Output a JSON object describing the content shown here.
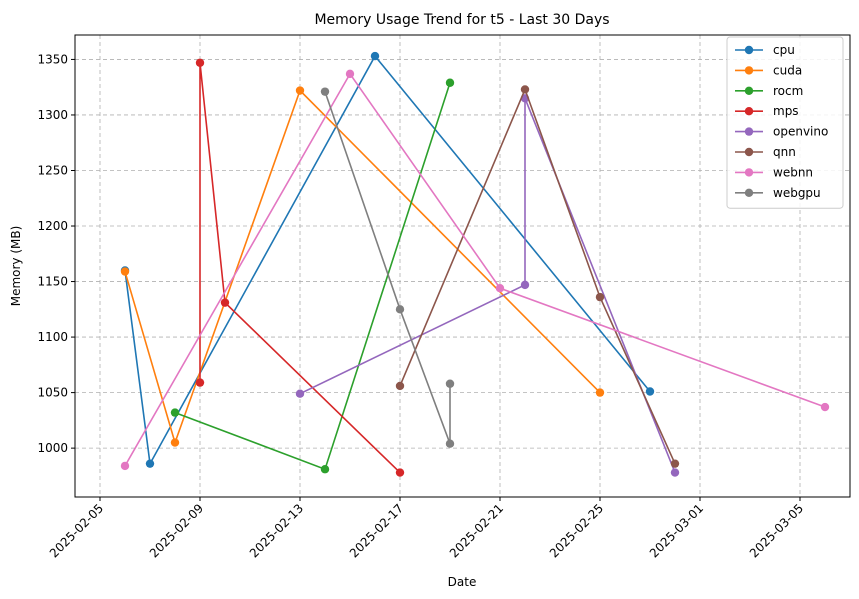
{
  "chart_data": {
    "type": "line",
    "title": "Memory Usage Trend for t5 - Last 30 Days",
    "xlabel": "Date",
    "ylabel": "Memory (MB)",
    "x_type": "date",
    "xlim": [
      "2025-02-04",
      "2025-03-07"
    ],
    "ylim": [
      956,
      1372
    ],
    "x_ticks": [
      "2025-02-05",
      "2025-02-09",
      "2025-02-13",
      "2025-02-17",
      "2025-02-21",
      "2025-02-25",
      "2025-03-01",
      "2025-03-05"
    ],
    "y_ticks": [
      1000,
      1050,
      1100,
      1150,
      1200,
      1250,
      1300,
      1350
    ],
    "grid": true,
    "legend_position": "top-right",
    "series": [
      {
        "name": "cpu",
        "color": "#1f77b4",
        "points": [
          [
            "2025-02-06",
            1160
          ],
          [
            "2025-02-07",
            986
          ],
          [
            "2025-02-16",
            1353
          ],
          [
            "2025-02-27",
            1051
          ]
        ]
      },
      {
        "name": "cuda",
        "color": "#ff7f0e",
        "points": [
          [
            "2025-02-06",
            1159
          ],
          [
            "2025-02-08",
            1005
          ],
          [
            "2025-02-13",
            1322
          ],
          [
            "2025-02-25",
            1050
          ]
        ]
      },
      {
        "name": "rocm",
        "color": "#2ca02c",
        "points": [
          [
            "2025-02-08",
            1032
          ],
          [
            "2025-02-14",
            981
          ],
          [
            "2025-02-19",
            1329
          ]
        ]
      },
      {
        "name": "mps",
        "color": "#d62728",
        "points": [
          [
            "2025-02-09",
            1059
          ],
          [
            "2025-02-09",
            1347
          ],
          [
            "2025-02-10",
            1131
          ],
          [
            "2025-02-17",
            978
          ]
        ]
      },
      {
        "name": "openvino",
        "color": "#9467bd",
        "points": [
          [
            "2025-02-13",
            1049
          ],
          [
            "2025-02-22",
            1147
          ],
          [
            "2025-02-22",
            1315
          ],
          [
            "2025-02-28",
            978
          ]
        ]
      },
      {
        "name": "qnn",
        "color": "#8c564b",
        "points": [
          [
            "2025-02-17",
            1056
          ],
          [
            "2025-02-22",
            1323
          ],
          [
            "2025-02-25",
            1136
          ],
          [
            "2025-02-28",
            986
          ]
        ]
      },
      {
        "name": "webnn",
        "color": "#e377c2",
        "points": [
          [
            "2025-02-06",
            984
          ],
          [
            "2025-02-15",
            1337
          ],
          [
            "2025-02-21",
            1144
          ],
          [
            "2025-03-06",
            1037
          ]
        ]
      },
      {
        "name": "webgpu",
        "color": "#7f7f7f",
        "points": [
          [
            "2025-02-14",
            1321
          ],
          [
            "2025-02-17",
            1125
          ],
          [
            "2025-02-19",
            1004
          ],
          [
            "2025-02-19",
            1058
          ]
        ]
      }
    ]
  }
}
